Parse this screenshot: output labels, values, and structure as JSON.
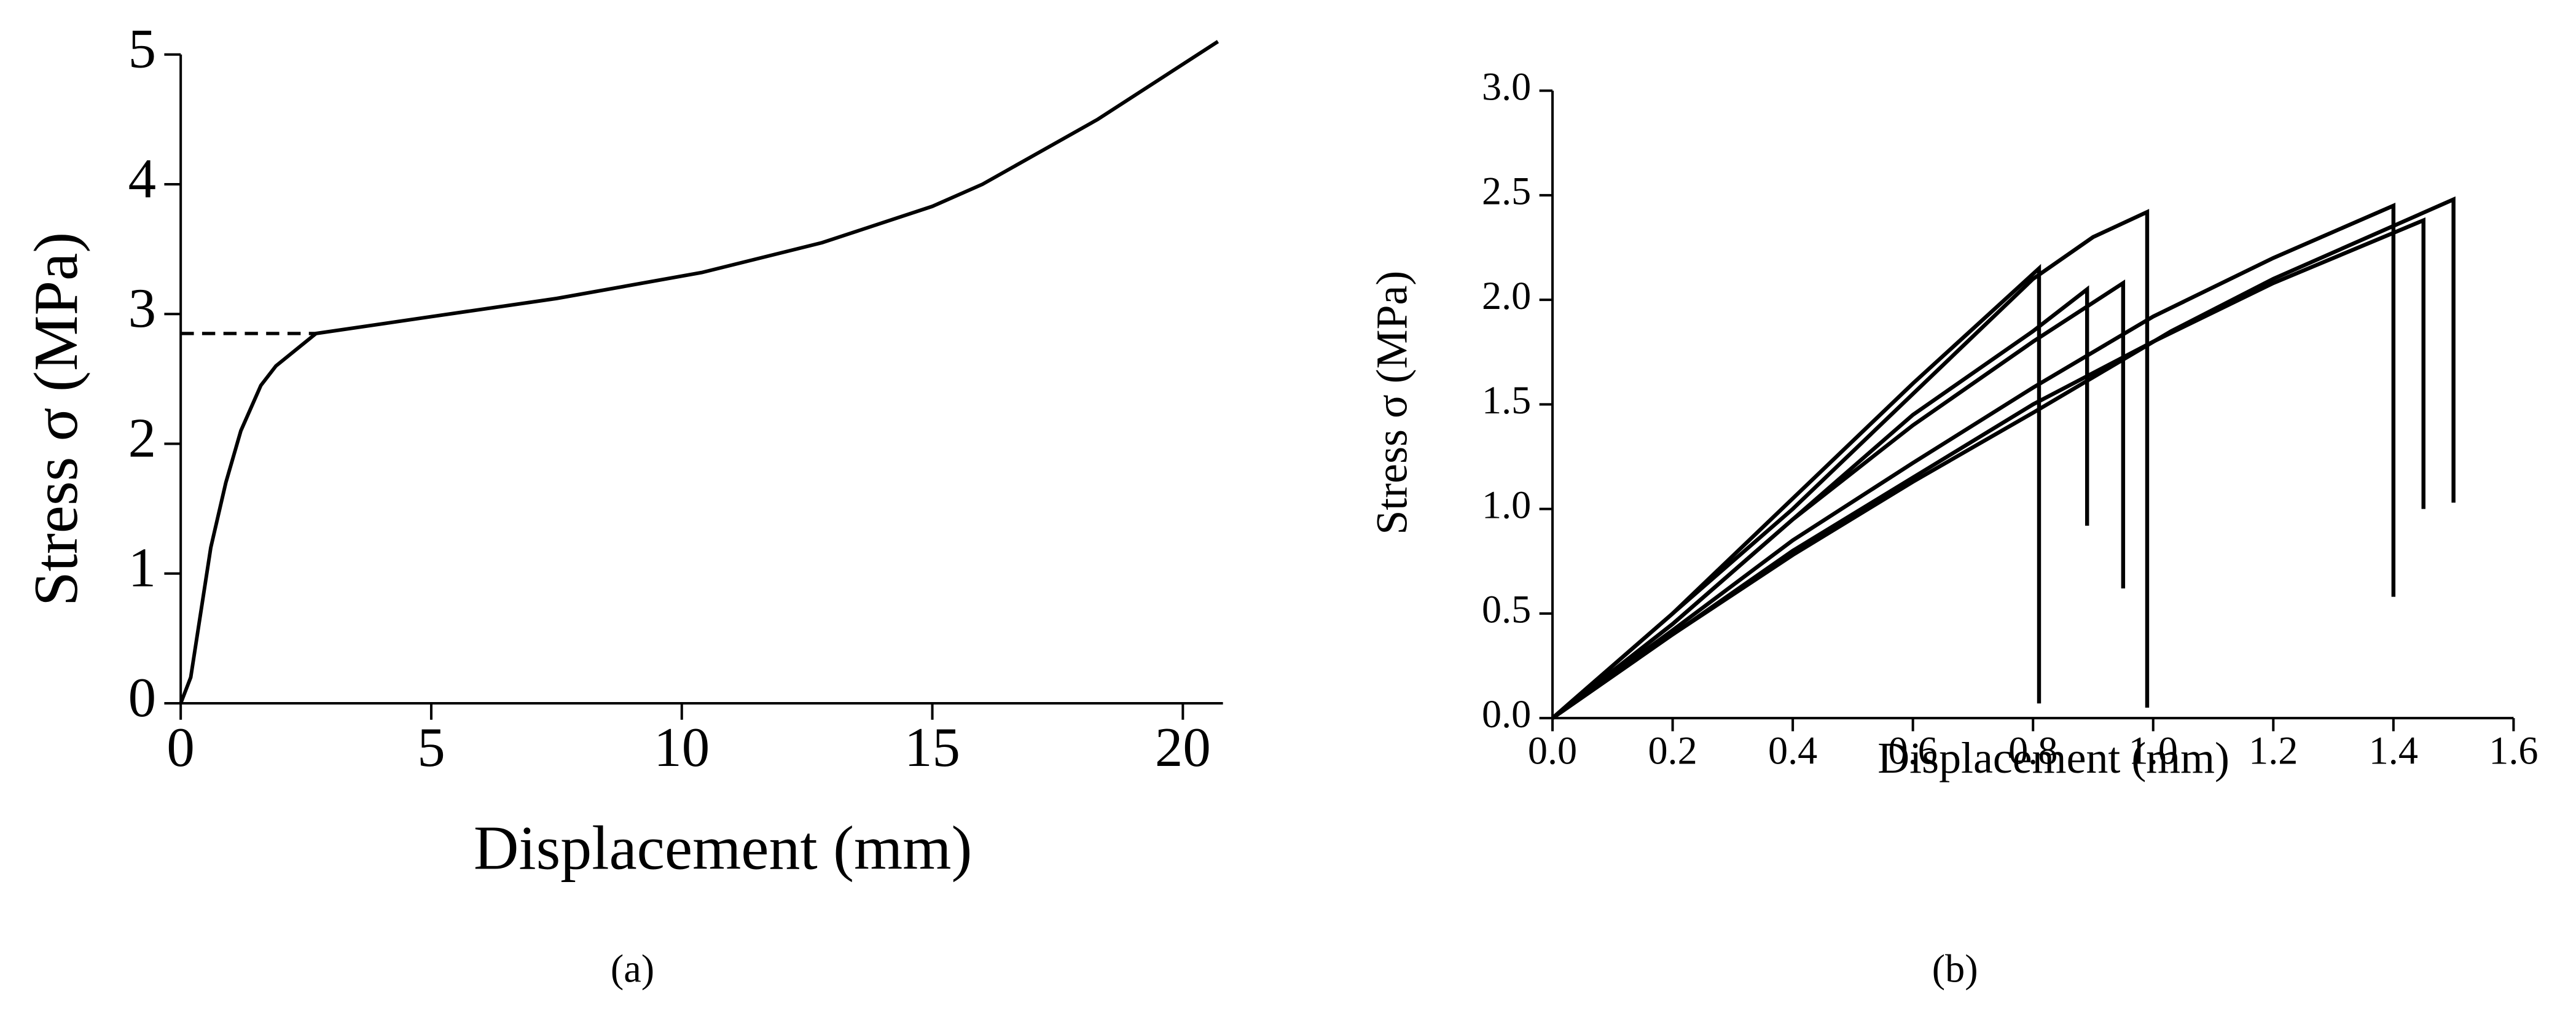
{
  "chart_data": [
    {
      "type": "line",
      "caption": "(a)",
      "xlabel": "Displacement (mm)",
      "ylabel": "Stress σ (MPa)",
      "x": [
        0,
        0.2,
        0.4,
        0.6,
        0.9,
        1.2,
        1.6,
        1.9,
        2.7,
        5,
        7.5,
        10.4,
        12.8,
        15,
        16,
        18.3,
        20.7
      ],
      "values": [
        0,
        0.2,
        0.7,
        1.2,
        1.7,
        2.1,
        2.45,
        2.6,
        2.85,
        2.98,
        3.12,
        3.32,
        3.55,
        3.83,
        4.0,
        4.5,
        5.1
      ],
      "color": "#000000",
      "dashed_line": {
        "x": [
          0,
          2.7
        ],
        "y": [
          2.85,
          2.85
        ]
      },
      "xlim": [
        0,
        20.8
      ],
      "ylim": [
        0,
        5
      ],
      "xticks": [
        0,
        5,
        10,
        15,
        20
      ],
      "yticks": [
        0,
        1,
        2,
        3,
        4,
        5
      ]
    },
    {
      "type": "line",
      "caption": "(b)",
      "xlabel": "Displacement (mm)",
      "ylabel": "Stress σ (MPa)",
      "series": [
        {
          "color": "#000000",
          "x": [
            0,
            0.2,
            0.4,
            0.6,
            0.81,
            0.81
          ],
          "values": [
            0,
            0.5,
            1.05,
            1.6,
            2.15,
            0.07
          ]
        },
        {
          "color": "#000000",
          "x": [
            0,
            0.2,
            0.4,
            0.6,
            0.8,
            0.9,
            0.99,
            0.99
          ],
          "values": [
            0,
            0.5,
            1.0,
            1.55,
            2.1,
            2.3,
            2.42,
            0.05
          ]
        },
        {
          "color": "#000000",
          "x": [
            0,
            0.2,
            0.4,
            0.6,
            0.8,
            0.89,
            0.89
          ],
          "values": [
            0,
            0.45,
            0.95,
            1.45,
            1.85,
            2.05,
            0.92
          ]
        },
        {
          "color": "#000000",
          "x": [
            0,
            0.2,
            0.4,
            0.6,
            0.8,
            0.95,
            0.95
          ],
          "values": [
            0,
            0.45,
            0.95,
            1.4,
            1.8,
            2.08,
            0.62
          ]
        },
        {
          "color": "#000000",
          "x": [
            0,
            0.2,
            0.4,
            0.6,
            0.8,
            1.0,
            1.2,
            1.4,
            1.4
          ],
          "values": [
            0,
            0.42,
            0.85,
            1.22,
            1.58,
            1.92,
            2.2,
            2.45,
            0.58
          ]
        },
        {
          "color": "#000000",
          "x": [
            0,
            0.2,
            0.4,
            0.6,
            0.8,
            1.0,
            1.2,
            1.45,
            1.45
          ],
          "values": [
            0,
            0.4,
            0.8,
            1.15,
            1.5,
            1.8,
            2.08,
            2.38,
            1.0
          ]
        },
        {
          "color": "#000000",
          "x": [
            0,
            0.2,
            0.4,
            0.6,
            0.8,
            1.03,
            1.2,
            1.5,
            1.5
          ],
          "values": [
            0,
            0.4,
            0.78,
            1.13,
            1.46,
            1.85,
            2.1,
            2.48,
            1.03
          ]
        }
      ],
      "xlim": [
        0,
        1.6
      ],
      "ylim": [
        0,
        3
      ],
      "xticks": [
        {
          "value": 0,
          "label": "0.0"
        },
        {
          "value": 0.2,
          "label": "0.2"
        },
        {
          "value": 0.4,
          "label": "0.4"
        },
        {
          "value": 0.6,
          "label": "0.6"
        },
        {
          "value": 0.8,
          "label": "0.8"
        },
        {
          "value": 1,
          "label": "1.0"
        },
        {
          "value": 1.2,
          "label": "1.2"
        },
        {
          "value": 1.4,
          "label": "1.4"
        },
        {
          "value": 1.6,
          "label": "1.6"
        }
      ],
      "yticks": [
        {
          "value": 0,
          "label": "0.0"
        },
        {
          "value": 0.5,
          "label": "0.5"
        },
        {
          "value": 1,
          "label": "1.0"
        },
        {
          "value": 1.5,
          "label": "1.5"
        },
        {
          "value": 2,
          "label": "2.0"
        },
        {
          "value": 2.5,
          "label": "2.5"
        },
        {
          "value": 3,
          "label": "3.0"
        }
      ]
    }
  ]
}
